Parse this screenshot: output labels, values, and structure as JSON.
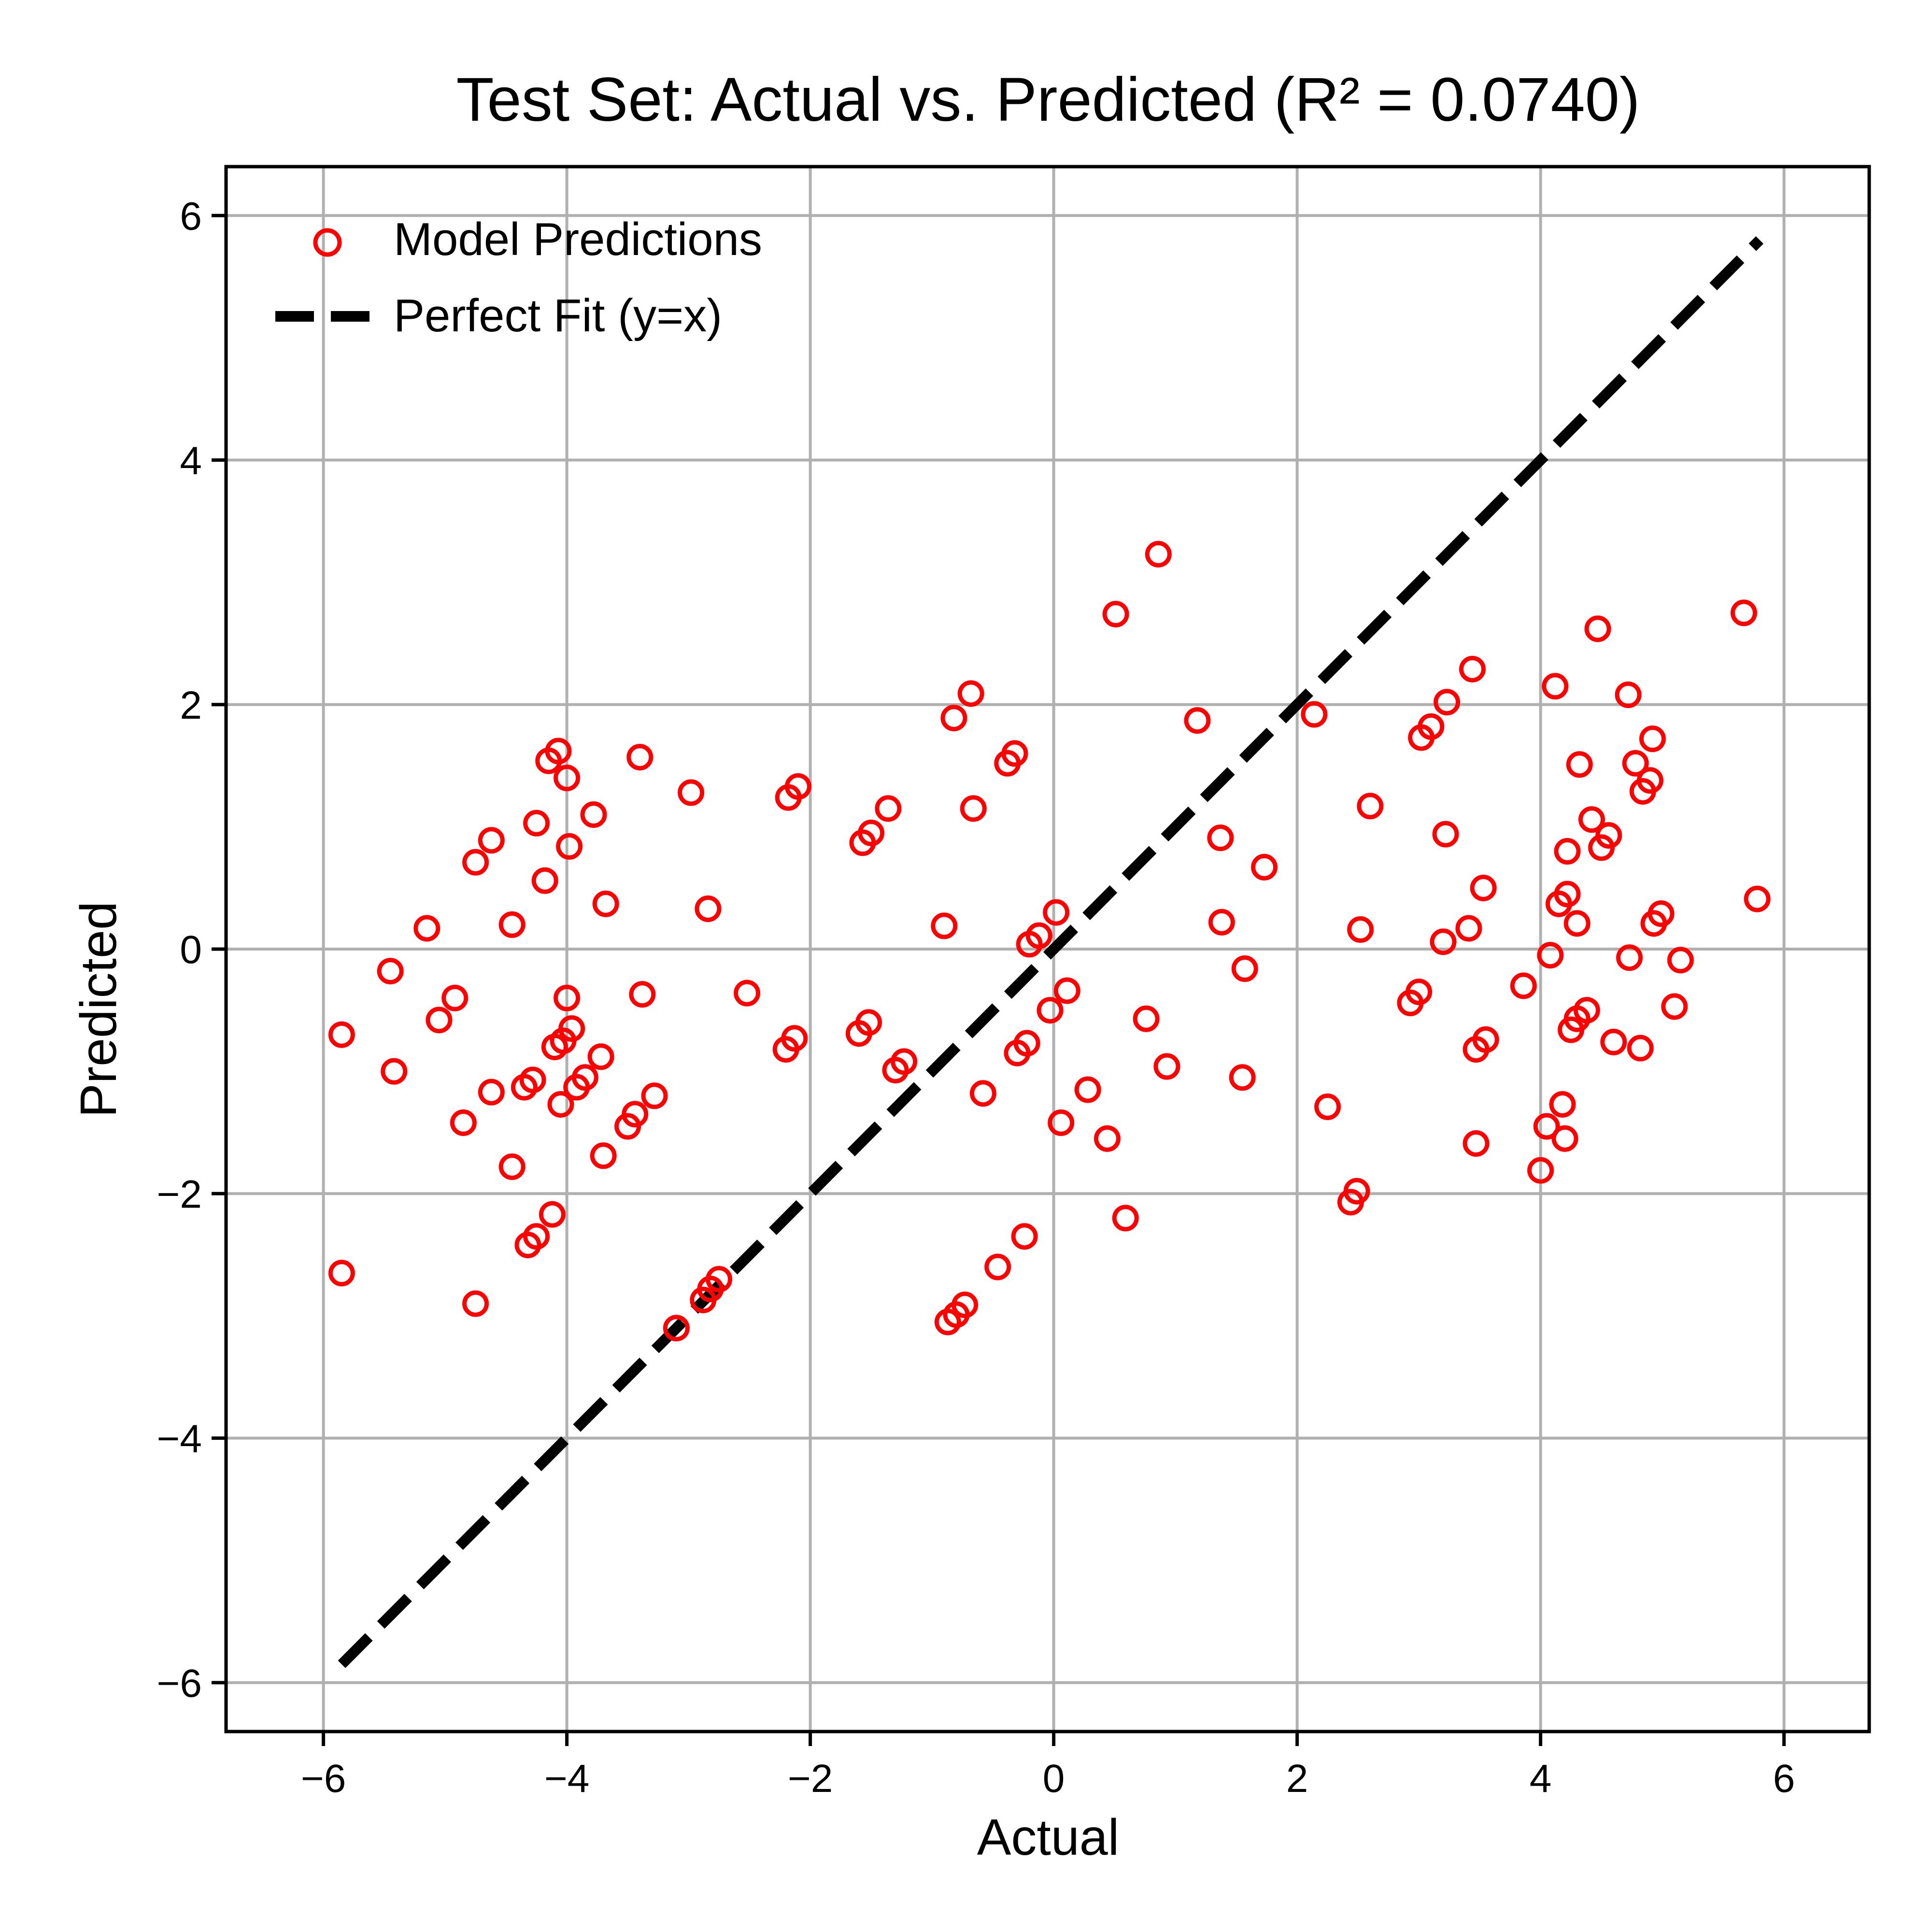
{
  "chart_data": {
    "type": "scatter",
    "title": "Test Set: Actual vs. Predicted (R² = 0.0740)",
    "xlabel": "Actual",
    "ylabel": "Predicted",
    "xlim": [
      -6.8,
      6.7
    ],
    "ylim": [
      -6.4,
      6.4
    ],
    "xticks": [
      -6,
      -4,
      -2,
      0,
      2,
      4,
      6
    ],
    "yticks": [
      -6,
      -4,
      -2,
      0,
      2,
      4,
      6
    ],
    "xtick_labels": [
      "−6",
      "−4",
      "−2",
      "0",
      "2",
      "4",
      "6"
    ],
    "ytick_labels": [
      "−6",
      "−4",
      "−2",
      "0",
      "2",
      "4",
      "6"
    ],
    "grid": true,
    "legend_position": "top-left",
    "colors": {
      "points": "#ff0000",
      "line": "#000000",
      "grid": "#b0b0b0"
    },
    "series": [
      {
        "name": "Model Predictions",
        "kind": "scatter",
        "marker": "hollow-circle",
        "points": [
          [
            -5.85,
            -0.7
          ],
          [
            -5.85,
            -2.65
          ],
          [
            -5.45,
            -0.18
          ],
          [
            -5.42,
            -1.0
          ],
          [
            -5.15,
            0.17
          ],
          [
            -5.05,
            -0.58
          ],
          [
            -4.92,
            -0.4
          ],
          [
            -4.85,
            -1.42
          ],
          [
            -4.75,
            0.71
          ],
          [
            -4.75,
            -2.9
          ],
          [
            -4.62,
            0.89
          ],
          [
            -4.62,
            -1.17
          ],
          [
            -4.45,
            0.2
          ],
          [
            -4.45,
            -1.78
          ],
          [
            -4.35,
            -1.13
          ],
          [
            -4.32,
            -2.42
          ],
          [
            -4.28,
            -1.07
          ],
          [
            -4.25,
            1.03
          ],
          [
            -4.25,
            -2.35
          ],
          [
            -4.18,
            0.56
          ],
          [
            -4.15,
            1.54
          ],
          [
            -4.12,
            -2.17
          ],
          [
            -4.1,
            -0.8
          ],
          [
            -4.07,
            1.62
          ],
          [
            -4.05,
            -1.27
          ],
          [
            -4.03,
            -0.75
          ],
          [
            -4.0,
            1.4
          ],
          [
            -4.0,
            -0.4
          ],
          [
            -3.98,
            0.84
          ],
          [
            -3.96,
            -0.65
          ],
          [
            -3.92,
            -1.13
          ],
          [
            -3.85,
            -1.05
          ],
          [
            -3.78,
            1.1
          ],
          [
            -3.72,
            -0.88
          ],
          [
            -3.7,
            -1.69
          ],
          [
            -3.68,
            0.37
          ],
          [
            -3.5,
            -1.45
          ],
          [
            -3.44,
            -1.35
          ],
          [
            -3.4,
            1.57
          ],
          [
            -3.38,
            -0.37
          ],
          [
            -3.28,
            -1.2
          ],
          [
            -3.1,
            -3.1
          ],
          [
            -2.98,
            1.28
          ],
          [
            -2.88,
            -2.87
          ],
          [
            -2.84,
            0.33
          ],
          [
            -2.82,
            -2.78
          ],
          [
            -2.75,
            -2.7
          ],
          [
            -2.52,
            -0.36
          ],
          [
            -2.2,
            -0.82
          ],
          [
            -2.18,
            1.24
          ],
          [
            -2.13,
            -0.73
          ],
          [
            -2.1,
            1.33
          ],
          [
            -1.6,
            -0.69
          ],
          [
            -1.57,
            0.87
          ],
          [
            -1.52,
            -0.6
          ],
          [
            -1.5,
            0.95
          ],
          [
            -1.36,
            1.15
          ],
          [
            -1.3,
            -0.99
          ],
          [
            -1.23,
            -0.92
          ],
          [
            -0.9,
            0.19
          ],
          [
            -0.87,
            -3.05
          ],
          [
            -0.82,
            1.89
          ],
          [
            -0.8,
            -2.99
          ],
          [
            -0.73,
            -2.91
          ],
          [
            -0.68,
            2.09
          ],
          [
            -0.66,
            1.15
          ],
          [
            -0.58,
            -1.18
          ],
          [
            -0.46,
            -2.6
          ],
          [
            -0.38,
            1.52
          ],
          [
            -0.32,
            1.6
          ],
          [
            -0.3,
            -0.85
          ],
          [
            -0.24,
            -2.35
          ],
          [
            -0.22,
            -0.77
          ],
          [
            -0.2,
            0.04
          ],
          [
            -0.12,
            0.11
          ],
          [
            -0.03,
            -0.5
          ],
          [
            0.02,
            0.3
          ],
          [
            0.06,
            -1.42
          ],
          [
            0.11,
            -0.34
          ],
          [
            0.28,
            -1.15
          ],
          [
            0.44,
            -1.55
          ],
          [
            0.51,
            2.74
          ],
          [
            0.59,
            -2.2
          ],
          [
            0.76,
            -0.57
          ],
          [
            0.86,
            3.23
          ],
          [
            0.93,
            -0.96
          ],
          [
            1.18,
            1.87
          ],
          [
            1.37,
            0.91
          ],
          [
            1.38,
            0.22
          ],
          [
            1.55,
            -1.05
          ],
          [
            1.57,
            -0.16
          ],
          [
            1.73,
            0.67
          ],
          [
            2.14,
            1.92
          ],
          [
            2.25,
            -1.29
          ],
          [
            2.44,
            -2.07
          ],
          [
            2.49,
            -1.98
          ],
          [
            2.52,
            0.16
          ],
          [
            2.6,
            1.17
          ],
          [
            2.93,
            -0.44
          ],
          [
            3.0,
            -0.35
          ],
          [
            3.02,
            1.73
          ],
          [
            3.1,
            1.82
          ],
          [
            3.2,
            0.06
          ],
          [
            3.23,
            2.02
          ],
          [
            3.22,
            0.94
          ],
          [
            3.41,
            0.17
          ],
          [
            3.44,
            2.29
          ],
          [
            3.47,
            -0.82
          ],
          [
            3.47,
            -1.59
          ],
          [
            3.53,
            0.5
          ],
          [
            3.55,
            -0.74
          ],
          [
            3.86,
            -0.3
          ],
          [
            4.0,
            -1.81
          ],
          [
            4.05,
            -1.45
          ],
          [
            4.08,
            -0.05
          ],
          [
            4.12,
            2.15
          ],
          [
            4.15,
            0.37
          ],
          [
            4.18,
            -1.27
          ],
          [
            4.2,
            -1.55
          ],
          [
            4.22,
            0.45
          ],
          [
            4.22,
            0.8
          ],
          [
            4.25,
            -0.66
          ],
          [
            4.3,
            -0.57
          ],
          [
            4.3,
            0.21
          ],
          [
            4.32,
            1.51
          ],
          [
            4.38,
            -0.5
          ],
          [
            4.42,
            1.06
          ],
          [
            4.47,
            2.62
          ],
          [
            4.5,
            0.83
          ],
          [
            4.56,
            0.93
          ],
          [
            4.6,
            -0.76
          ],
          [
            4.72,
            2.08
          ],
          [
            4.73,
            -0.07
          ],
          [
            4.78,
            1.52
          ],
          [
            4.82,
            -0.81
          ],
          [
            4.84,
            1.29
          ],
          [
            4.9,
            1.38
          ],
          [
            4.92,
            1.72
          ],
          [
            4.93,
            0.21
          ],
          [
            4.99,
            0.29
          ],
          [
            5.1,
            -0.47
          ],
          [
            5.15,
            -0.09
          ],
          [
            5.67,
            2.75
          ],
          [
            5.78,
            0.41
          ]
        ]
      },
      {
        "name": "Perfect Fit (y=x)",
        "kind": "line",
        "style": "dashed",
        "points": [
          [
            -5.85,
            -5.85
          ],
          [
            5.8,
            5.8
          ]
        ]
      }
    ]
  }
}
